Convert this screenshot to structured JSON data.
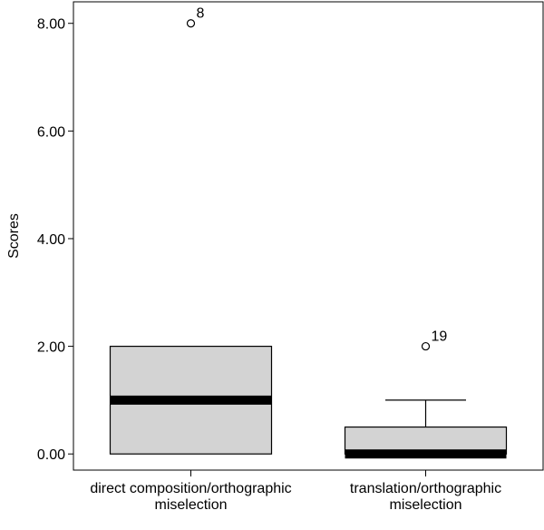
{
  "chart_data": {
    "type": "boxplot",
    "ylabel": "Scores",
    "ylim": [
      -0.3,
      8.4
    ],
    "yticks": [
      0,
      2,
      4,
      6,
      8
    ],
    "ytick_labels": [
      "0.00",
      "2.00",
      "4.00",
      "6.00",
      "8.00"
    ],
    "grid": false,
    "categories": [
      [
        "direct composition/orthographic",
        "miselection"
      ],
      [
        "translation/orthographic",
        "miselection"
      ]
    ],
    "boxes": [
      {
        "q1": 0,
        "median": 1,
        "q3": 2,
        "whisker_low": 0,
        "whisker_high": 2,
        "outliers": [
          {
            "value": 8,
            "label": "8"
          }
        ]
      },
      {
        "q1": 0,
        "median": 0,
        "q3": 0.5,
        "whisker_low": 0,
        "whisker_high": 1,
        "outliers": [
          {
            "value": 2,
            "label": "19"
          }
        ]
      }
    ],
    "colors": {
      "box_fill": "#d3d3d3",
      "stroke": "#000000",
      "background": "#ffffff"
    }
  }
}
